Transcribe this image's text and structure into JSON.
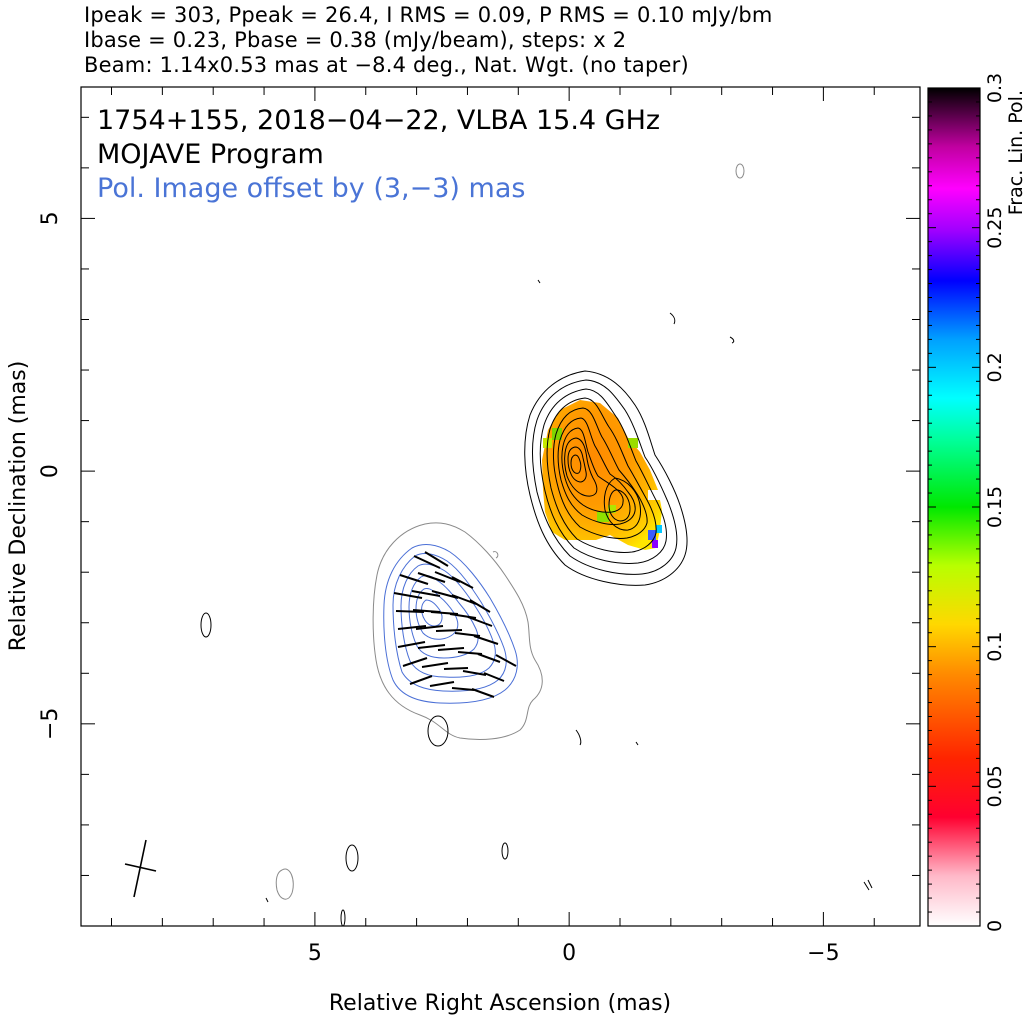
{
  "header": {
    "line1": "Ipeak = 303, Ppeak = 26.4, I RMS = 0.09, P RMS = 0.10 mJy/bm",
    "line2": "Ibase = 0.23, Pbase = 0.38 (mJy/beam), steps: x 2",
    "line3": "Beam: 1.14x0.53 mas at −8.4 deg., Nat. Wgt. (no taper)"
  },
  "annotations": {
    "source": "1754+155, 2018−04−22, VLBA 15.4 GHz",
    "program": "MOJAVE Program",
    "offset_note": "Pol. Image offset by (3,−3) mas"
  },
  "colors": {
    "stokes_i_contours": "#000000",
    "pol_contours": "#4a6fd6",
    "pol_outer_contour": "#8a8a8a",
    "offset_note_text": "#4a74d6"
  },
  "chart_data": {
    "type": "heatmap",
    "xlabel": "Relative Right Ascension (mas)",
    "ylabel": "Relative Declination (mas)",
    "xlim": [
      9.6,
      -6.9
    ],
    "ylim": [
      -9.0,
      7.6
    ],
    "x_ticks": [
      5,
      0,
      -5
    ],
    "x_tick_labels": [
      "5",
      "0",
      "−5"
    ],
    "y_ticks": [
      5,
      0,
      -5
    ],
    "y_tick_labels": [
      "5",
      "0",
      "−5"
    ],
    "x_minor_step": 1,
    "y_minor_step": 1,
    "colorbar": {
      "label": "Frac. Lin. Pol.",
      "range": [
        0,
        0.3
      ],
      "ticks": [
        0,
        0.05,
        0.1,
        0.15,
        0.2,
        0.25,
        0.3
      ],
      "tick_labels": [
        "0",
        "0.05",
        "0.1",
        "0.15",
        "0.2",
        "0.25",
        "0.3"
      ]
    },
    "stokes_i_peak_position": [
      0,
      0
    ],
    "pol_image_offset": [
      3,
      -3
    ],
    "contour_levels_mJy": [
      0.23,
      0.46,
      0.92,
      1.84,
      3.68,
      7.36,
      14.72,
      29.44,
      58.88,
      117.76,
      235.52
    ],
    "frac_pol_range_shown": [
      0.05,
      0.27
    ],
    "beam": {
      "major_mas": 1.14,
      "minor_mas": 0.53,
      "pa_deg": -8.4
    }
  }
}
